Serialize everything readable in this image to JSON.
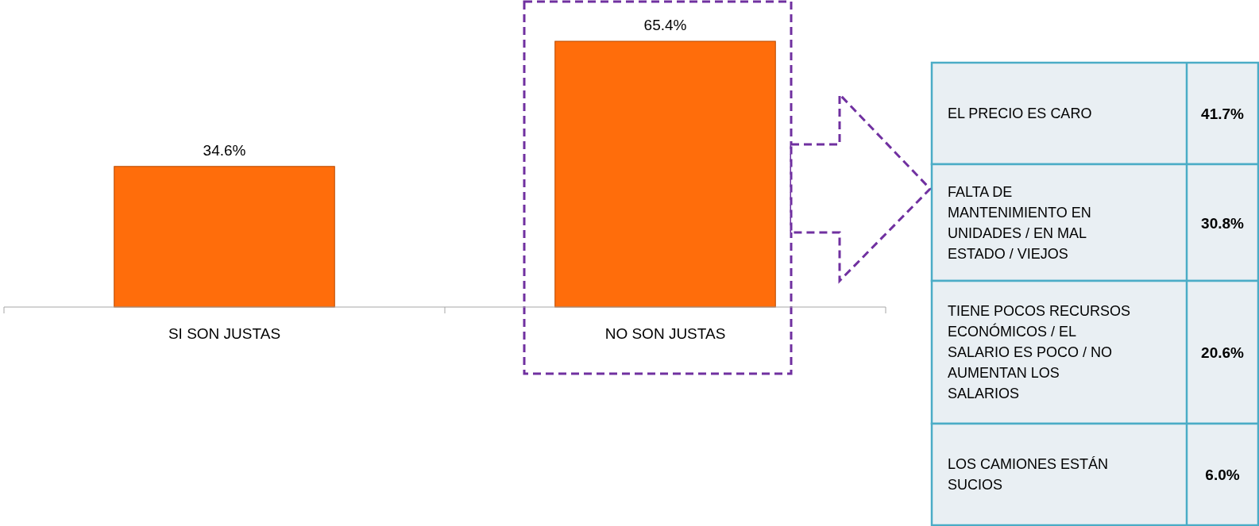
{
  "chart_data": [
    {
      "type": "bar",
      "categories": [
        "SI SON JUSTAS",
        "NO SON JUSTAS"
      ],
      "values": [
        34.6,
        65.4
      ],
      "value_labels": [
        "34.6%",
        "65.4%"
      ],
      "color": "#ff6d0b"
    },
    {
      "type": "other",
      "categories": [
        "EL PRECIO ES CARO",
        "FALTA DE MANTENIMIENTO EN UNIDADES / EN MAL ESTADO / VIEJOS",
        "TIENE POCOS RECURSOS ECONÓMICOS / EL SALARIO ES POCO / NO AUMENTAN LOS SALARIOS",
        "LOS CAMIONES ESTÁN SUCIOS"
      ],
      "value_labels": [
        "41.7%",
        "30.8%",
        "20.6%",
        "6.0%"
      ]
    }
  ]
}
